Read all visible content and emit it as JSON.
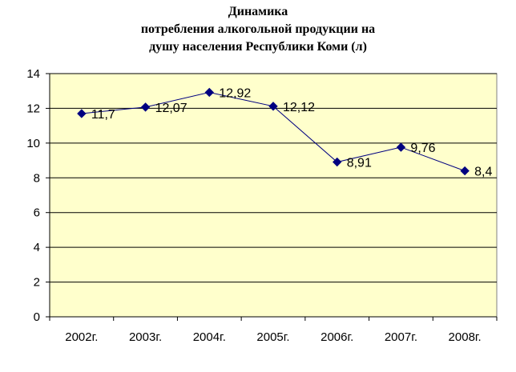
{
  "chart_data": {
    "type": "line",
    "title_lines": [
      "Динамика",
      "потребления алкогольной продукции на",
      "душу населения  Республики Коми  (л)"
    ],
    "categories": [
      "2002г.",
      "2003г.",
      "2004г.",
      "2005г.",
      "2006г.",
      "2007г.",
      "2008г."
    ],
    "series": [
      {
        "values": [
          11.7,
          12.07,
          12.92,
          12.12,
          8.91,
          9.76,
          8.4
        ],
        "data_labels": [
          "11,7",
          "12,07",
          "12,92",
          "12,12",
          "8,91",
          "9,76",
          "8,4"
        ]
      }
    ],
    "y_ticks": [
      "0",
      "2",
      "4",
      "6",
      "8",
      "10",
      "12",
      "14"
    ],
    "ylim": [
      0,
      14
    ],
    "grid": true,
    "legend": "none",
    "colors": {
      "plot_area": "#ffffcc",
      "line": "#000080",
      "marker": "#000080",
      "grid": "#000000"
    }
  }
}
